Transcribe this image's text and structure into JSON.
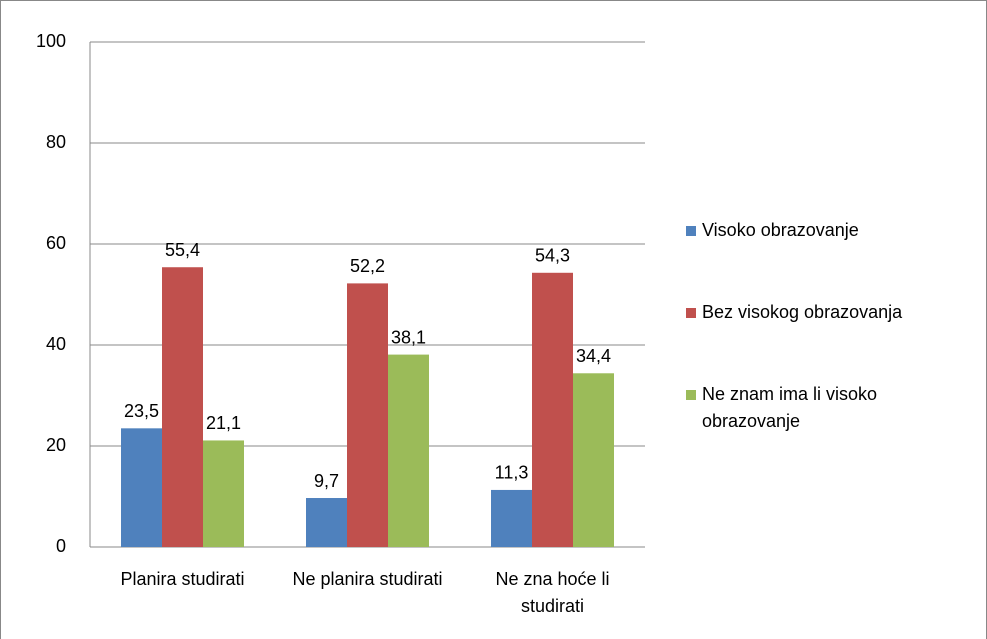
{
  "chart_data": {
    "type": "bar",
    "categories": [
      "Planira studirati",
      "Ne planira studirati",
      "Ne zna hoće li studirati"
    ],
    "series": [
      {
        "name": "Visoko obrazovanje",
        "color": "#4f81bd",
        "values": [
          23.5,
          9.7,
          11.3
        ],
        "value_labels": [
          "23,5",
          "9,7",
          "11,3"
        ]
      },
      {
        "name": "Bez visokog obrazovanja",
        "color": "#c0504d",
        "values": [
          55.4,
          52.2,
          54.3
        ],
        "value_labels": [
          "55,4",
          "52,2",
          "54,3"
        ]
      },
      {
        "name": "Ne znam ima li visoko obrazovanje",
        "color": "#9bbb59",
        "values": [
          21.1,
          38.1,
          34.4
        ],
        "value_labels": [
          "21,1",
          "38,1",
          "34,4"
        ]
      }
    ],
    "ylim": [
      0,
      100
    ],
    "yticks": [
      0,
      20,
      40,
      60,
      80,
      100
    ],
    "grid": true,
    "legend": "right"
  }
}
